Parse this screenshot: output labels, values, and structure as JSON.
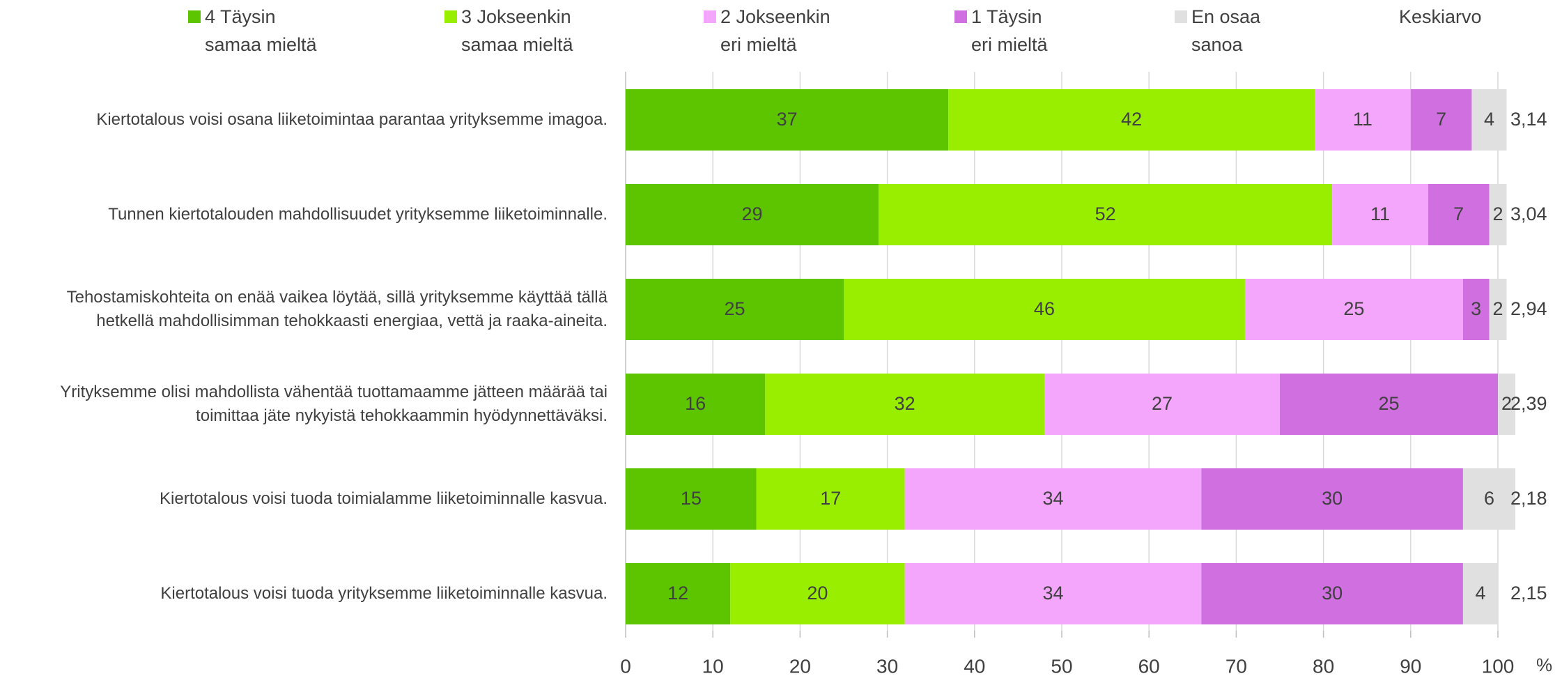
{
  "chart_data": {
    "type": "stacked-bar-horizontal",
    "categories": [
      "Kiertotalous voisi osana liiketoimintaa parantaa yrityksemme imagoa.",
      "Tunnen kiertotalouden mahdollisuudet yrityksemme liiketoiminnalle.",
      "Tehostamiskohteita on enää vaikea löytää, sillä yrityksemme käyttää tällä hetkellä mahdollisimman tehokkaasti energiaa, vettä ja raaka-aineita.",
      "Yrityksemme olisi mahdollista vähentää tuottamaamme jätteen määrää tai toimittaa jäte nykyistä tehokkaammin hyödynnettäväksi.",
      "Kiertotalous voisi tuoda toimialamme liiketoiminnalle kasvua.",
      "Kiertotalous voisi tuoda yrityksemme liiketoiminnalle kasvua."
    ],
    "series": [
      {
        "name": "4 Täysin\nsamaa mieltä",
        "color": "#5cc500",
        "values": [
          37,
          29,
          25,
          16,
          15,
          12
        ]
      },
      {
        "name": "3 Jokseenkin\nsamaa mieltä",
        "color": "#99ee00",
        "values": [
          42,
          52,
          46,
          32,
          17,
          20
        ]
      },
      {
        "name": "2 Jokseenkin\neri mieltä",
        "color": "#f4a6fc",
        "values": [
          11,
          11,
          25,
          27,
          34,
          34
        ]
      },
      {
        "name": "1 Täysin\neri mieltä",
        "color": "#cf6fe0",
        "values": [
          7,
          7,
          3,
          25,
          30,
          30
        ]
      },
      {
        "name": "En osaa\nsanoa",
        "color": "#e0e0e0",
        "values": [
          4,
          2,
          2,
          2,
          6,
          4
        ]
      }
    ],
    "means": {
      "name": "Keskiarvo",
      "values": [
        3.14,
        3.04,
        2.94,
        2.39,
        2.18,
        2.15
      ],
      "value_labels": [
        "3,14",
        "3,04",
        "2,94",
        "2,39",
        "2,18",
        "2,15"
      ]
    },
    "xlim": [
      0,
      100
    ],
    "xticks": [
      0,
      10,
      20,
      30,
      40,
      50,
      60,
      70,
      80,
      90,
      100
    ],
    "xlabel": "%",
    "grid": true
  }
}
